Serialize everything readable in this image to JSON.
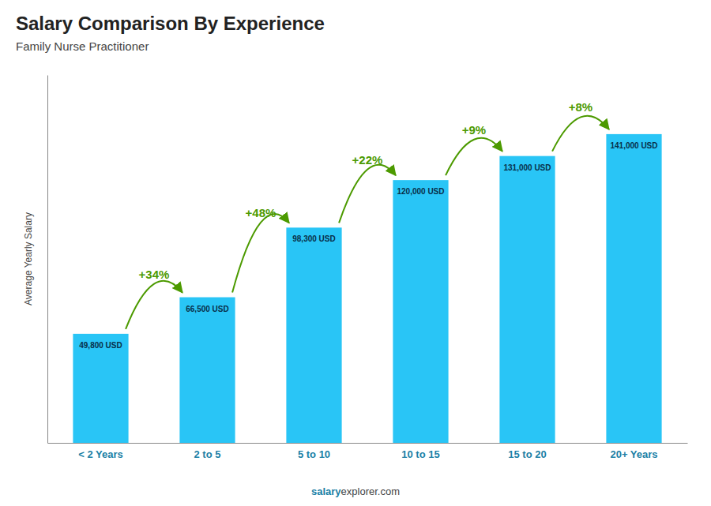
{
  "chart_data": {
    "type": "bar",
    "title": "Salary Comparison By Experience",
    "subtitle": "Family Nurse Practitioner",
    "categories": [
      "< 2 Years",
      "2 to 5",
      "5 to 10",
      "10 to 15",
      "15 to 20",
      "20+ Years"
    ],
    "values": [
      49800,
      66500,
      98300,
      120000,
      131000,
      141000
    ],
    "value_labels": [
      "49,800 USD",
      "66,500 USD",
      "98,300 USD",
      "120,000 USD",
      "131,000 USD",
      "141,000 USD"
    ],
    "data_labels": true,
    "color": "#29c5f6",
    "ylabel": "Average Yearly Salary",
    "ylim": [
      0,
      168000
    ],
    "tick_labels": "x",
    "grid": false,
    "annotations": [
      "+34%",
      "+48%",
      "+22%",
      "+9%",
      "+8%"
    ],
    "footer": [
      "salary",
      "explorer.com"
    ]
  }
}
